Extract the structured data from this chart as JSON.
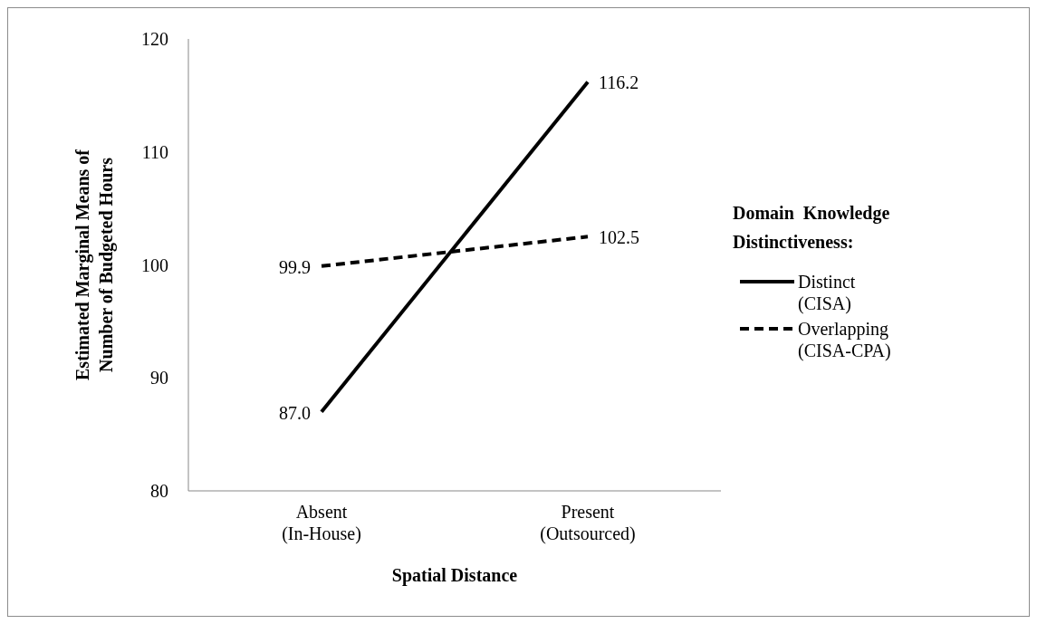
{
  "chart_data": {
    "type": "line",
    "xlabel": "Spatial Distance",
    "ylabel": "Estimated  Marginal  Means of\nNumber  of Budgeted Hours",
    "legend_title": "Domain  Knowledge\nDistinctiveness:",
    "categories": [
      "Absent\n(In-House)",
      "Present\n(Outsourced)"
    ],
    "series": [
      {
        "name": "Distinct\n(CISA)",
        "color": "#000000",
        "line_style": "solid",
        "values": [
          87.0,
          116.2
        ],
        "value_labels": [
          "87.0",
          "116.2"
        ]
      },
      {
        "name": "Overlapping\n(CISA-CPA)",
        "color": "#000000",
        "line_style": "dashed",
        "values": [
          99.9,
          102.5
        ],
        "value_labels": [
          "99.9",
          "102.5"
        ]
      }
    ],
    "ylim": [
      80,
      120
    ],
    "yticks": [
      80,
      90,
      100,
      110,
      120
    ],
    "grid": false,
    "legend": "right"
  }
}
